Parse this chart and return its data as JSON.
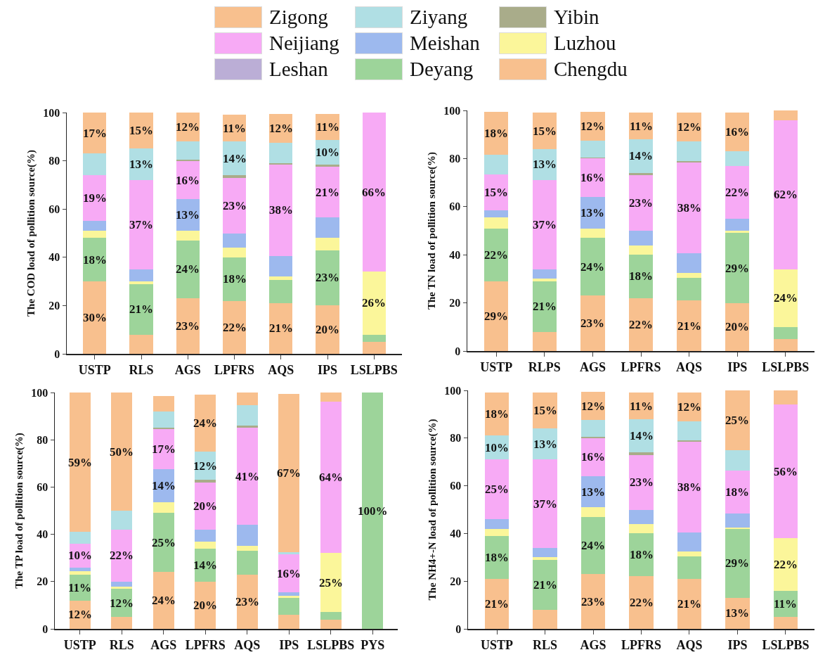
{
  "chart_data": [
    {
      "type": "bar",
      "stacked": true,
      "legend": "top",
      "ylabel": "The COD load of pollition source(%)",
      "ylim": [
        0,
        100
      ],
      "yticks": [
        0,
        20,
        40,
        60,
        80,
        100
      ],
      "categories": [
        "USTP",
        "RLS",
        "AGS",
        "LPFRS",
        "AQS",
        "IPS",
        "LSLPBS"
      ],
      "series": [
        {
          "name": "Chengdu",
          "color": "#f8c08e",
          "values": [
            30,
            8,
            23,
            22,
            21,
            20,
            5
          ],
          "value_labels": [
            "30%",
            null,
            "23%",
            "22%",
            "21%",
            "20%",
            null
          ]
        },
        {
          "name": "Deyang",
          "color": "#9dd49a",
          "values": [
            18,
            21,
            24,
            18,
            9.5,
            23,
            3
          ],
          "value_labels": [
            "18%",
            "21%",
            "24%",
            "18%",
            null,
            "23%",
            null
          ]
        },
        {
          "name": "Leshan",
          "color": "#bbaed6",
          "values": [
            0,
            0,
            0,
            0,
            0,
            0,
            0
          ]
        },
        {
          "name": "Luzhou",
          "color": "#fbf69a",
          "values": [
            3,
            1,
            4,
            4,
            1.5,
            5,
            26
          ],
          "value_labels": [
            null,
            null,
            null,
            null,
            null,
            null,
            "26%"
          ]
        },
        {
          "name": "Meishan",
          "color": "#9db9ee",
          "values": [
            4,
            5,
            13,
            6,
            8.5,
            8.5,
            0
          ],
          "value_labels": [
            null,
            null,
            "13%",
            null,
            null,
            null,
            null
          ]
        },
        {
          "name": "Neijiang",
          "color": "#f7aaf5",
          "values": [
            19,
            37,
            16,
            23,
            38,
            21,
            66
          ],
          "value_labels": [
            "19%",
            "37%",
            "16%",
            "23%",
            "38%",
            "21%",
            "66%"
          ]
        },
        {
          "name": "Yibin",
          "color": "#a9ac8a",
          "values": [
            0,
            0,
            0.5,
            1,
            0.5,
            1,
            0
          ]
        },
        {
          "name": "Ziyang",
          "color": "#b0dfe4",
          "values": [
            9,
            13,
            7.5,
            14,
            8.5,
            10,
            0
          ],
          "value_labels": [
            null,
            "13%",
            null,
            "14%",
            null,
            "10%",
            null
          ]
        },
        {
          "name": "Zigong",
          "color": "#f8c08e",
          "values": [
            17,
            15,
            12,
            11,
            12,
            11,
            0
          ],
          "value_labels": [
            "17%",
            "15%",
            "12%",
            "11%",
            "12%",
            "11%",
            null
          ]
        }
      ]
    },
    {
      "type": "bar",
      "stacked": true,
      "ylabel": "The TN load of pollition source(%)",
      "ylim": [
        0,
        100
      ],
      "yticks": [
        0,
        20,
        40,
        60,
        80,
        100
      ],
      "categories": [
        "USTP",
        "RLPS",
        "AGS",
        "LPFRS",
        "AQS",
        "IPS",
        "LSLPBS"
      ],
      "series": [
        {
          "color": "#f8c08e",
          "values": [
            29,
            8,
            23,
            22,
            21,
            20,
            5
          ],
          "value_labels": [
            "29%",
            null,
            "23%",
            "22%",
            "21%",
            "20%",
            null
          ]
        },
        {
          "color": "#9dd49a",
          "values": [
            22,
            21,
            24,
            18,
            9.5,
            29,
            5
          ],
          "value_labels": [
            "22%",
            "21%",
            "24%",
            "18%",
            null,
            "29%",
            null
          ]
        },
        {
          "color": "#bbaed6",
          "values": [
            0,
            0,
            0,
            0,
            0,
            0,
            0
          ]
        },
        {
          "color": "#fbf69a",
          "values": [
            4.5,
            1,
            4,
            4,
            2,
            1,
            24
          ],
          "value_labels": [
            null,
            null,
            null,
            null,
            null,
            null,
            "24%"
          ]
        },
        {
          "color": "#9db9ee",
          "values": [
            3,
            4,
            13,
            6,
            8,
            5,
            0
          ],
          "value_labels": [
            null,
            null,
            "13%",
            null,
            null,
            null,
            null
          ]
        },
        {
          "color": "#f7aaf5",
          "values": [
            15,
            37,
            16,
            23,
            38,
            22,
            62
          ],
          "value_labels": [
            "15%",
            "37%",
            "16%",
            "23%",
            "38%",
            "22%",
            "62%"
          ]
        },
        {
          "color": "#a9ac8a",
          "values": [
            0,
            0,
            0.5,
            1,
            0.5,
            0,
            0
          ]
        },
        {
          "color": "#b0dfe4",
          "values": [
            8,
            13,
            7,
            14,
            8,
            6,
            0
          ],
          "value_labels": [
            null,
            "13%",
            null,
            "14%",
            null,
            null,
            null
          ]
        },
        {
          "color": "#f8c08e",
          "values": [
            18,
            15,
            12,
            11,
            12,
            16,
            4
          ],
          "value_labels": [
            "18%",
            "15%",
            "12%",
            "11%",
            "12%",
            "16%",
            null
          ]
        }
      ]
    },
    {
      "type": "bar",
      "stacked": true,
      "ylabel": "The TP load of pollition source(%)",
      "ylim": [
        0,
        100
      ],
      "yticks": [
        0,
        20,
        40,
        60,
        80,
        100
      ],
      "categories": [
        "USTP",
        "RLS",
        "AGS",
        "LPFRS",
        "AQS",
        "IPS",
        "LSLPBS",
        "PYS"
      ],
      "series": [
        {
          "color": "#f8c08e",
          "values": [
            12,
            5,
            24,
            20,
            23,
            6,
            4,
            0
          ],
          "value_labels": [
            "12%",
            null,
            "24%",
            "20%",
            "23%",
            null,
            null,
            null
          ]
        },
        {
          "color": "#9dd49a",
          "values": [
            11,
            12,
            25,
            14,
            10,
            7,
            3,
            100
          ],
          "value_labels": [
            "11%",
            "12%",
            "25%",
            "14%",
            null,
            null,
            null,
            "100%"
          ]
        },
        {
          "color": "#bbaed6",
          "values": [
            0,
            0,
            0,
            0,
            0,
            0,
            0,
            0
          ]
        },
        {
          "color": "#fbf69a",
          "values": [
            1.5,
            1,
            4.5,
            3,
            2,
            1,
            25,
            0
          ],
          "value_labels": [
            null,
            null,
            null,
            null,
            null,
            null,
            "25%",
            null
          ]
        },
        {
          "color": "#9db9ee",
          "values": [
            1.5,
            2,
            14,
            5,
            9,
            1.5,
            0,
            0
          ],
          "value_labels": [
            null,
            null,
            "14%",
            null,
            null,
            null,
            null,
            null
          ]
        },
        {
          "color": "#f7aaf5",
          "values": [
            10,
            22,
            17,
            20,
            41,
            16,
            64,
            0
          ],
          "value_labels": [
            "10%",
            "22%",
            "17%",
            "20%",
            "41%",
            "16%",
            "64%",
            null
          ]
        },
        {
          "color": "#a9ac8a",
          "values": [
            0,
            0,
            0.5,
            1,
            1,
            0,
            0,
            0
          ]
        },
        {
          "color": "#b0dfe4",
          "values": [
            5,
            8,
            7,
            12,
            8.5,
            1,
            0,
            0
          ],
          "value_labels": [
            null,
            null,
            null,
            "12%",
            null,
            null,
            null,
            null
          ]
        },
        {
          "color": "#f8c08e",
          "values": [
            59,
            50,
            6.5,
            24,
            5.5,
            67,
            4,
            0
          ],
          "value_labels": [
            "59%",
            "50%",
            null,
            "24%",
            null,
            "67%",
            null,
            null
          ]
        }
      ]
    },
    {
      "type": "bar",
      "stacked": true,
      "ylabel": "The NH4+-N load of pollition source(%)",
      "ylim": [
        0,
        100
      ],
      "yticks": [
        0,
        20,
        40,
        60,
        80,
        100
      ],
      "categories": [
        "USTP",
        "RLS",
        "AGS",
        "LPFRS",
        "AQS",
        "IPS",
        "LSLPBS"
      ],
      "series": [
        {
          "color": "#f8c08e",
          "values": [
            21,
            8,
            23,
            22,
            21,
            13,
            5
          ],
          "value_labels": [
            "21%",
            null,
            "23%",
            "22%",
            "21%",
            "13%",
            null
          ]
        },
        {
          "color": "#9dd49a",
          "values": [
            18,
            21,
            24,
            18,
            9.5,
            29,
            11
          ],
          "value_labels": [
            "18%",
            "21%",
            "24%",
            "18%",
            null,
            "29%",
            "11%"
          ]
        },
        {
          "color": "#bbaed6",
          "values": [
            0,
            0,
            0,
            0,
            0,
            0,
            0
          ]
        },
        {
          "color": "#fbf69a",
          "values": [
            3,
            1,
            4,
            4,
            2,
            0.5,
            22
          ],
          "value_labels": [
            null,
            null,
            null,
            null,
            null,
            null,
            "22%"
          ]
        },
        {
          "color": "#9db9ee",
          "values": [
            4,
            4,
            13,
            6,
            8,
            6,
            0
          ],
          "value_labels": [
            null,
            null,
            "13%",
            null,
            null,
            null,
            null
          ]
        },
        {
          "color": "#f7aaf5",
          "values": [
            25,
            37,
            16,
            23,
            38,
            18,
            56
          ],
          "value_labels": [
            "25%",
            "37%",
            "16%",
            "23%",
            "38%",
            "18%",
            "56%"
          ]
        },
        {
          "color": "#a9ac8a",
          "values": [
            0,
            0,
            0.5,
            1,
            0.5,
            0,
            0
          ]
        },
        {
          "color": "#b0dfe4",
          "values": [
            10,
            13,
            7,
            14,
            8,
            8.5,
            0
          ],
          "value_labels": [
            "10%",
            "13%",
            null,
            "14%",
            null,
            null,
            null
          ]
        },
        {
          "color": "#f8c08e",
          "values": [
            18,
            15,
            12,
            11,
            12,
            25,
            6
          ],
          "value_labels": [
            "18%",
            "15%",
            "12%",
            "11%",
            "12%",
            "25%",
            null
          ]
        }
      ]
    }
  ]
}
